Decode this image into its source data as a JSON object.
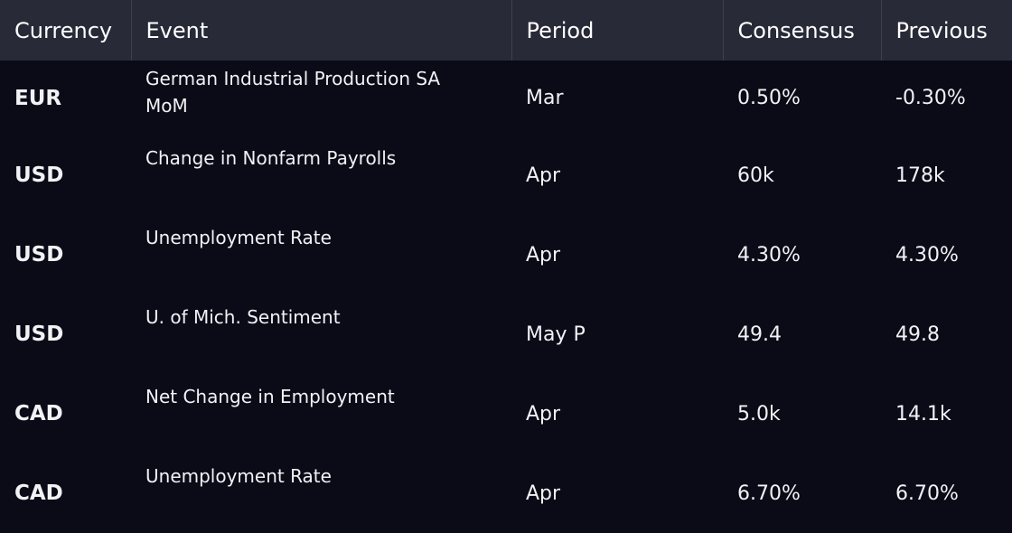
{
  "table": {
    "header": [
      "Currency",
      "Event",
      "Period",
      "Consensus",
      "Previous"
    ],
    "rows": [
      [
        "EUR",
        "German Industrial Production SA MoM",
        "Mar",
        "0.50%",
        "-0.30%"
      ],
      [
        "USD",
        "Change in Nonfarm Payrolls",
        "Apr",
        "60k",
        "178k"
      ],
      [
        "USD",
        "Unemployment Rate",
        "Apr",
        "4.30%",
        "4.30%"
      ],
      [
        "USD",
        "U. of Mich. Sentiment",
        "May P",
        "49.4",
        "49.8"
      ],
      [
        "CAD",
        "Net Change in Employment",
        "Apr",
        "5.0k",
        "14.1k"
      ],
      [
        "CAD",
        "Unemployment Rate",
        "Apr",
        "6.70%",
        "6.70%"
      ]
    ]
  }
}
